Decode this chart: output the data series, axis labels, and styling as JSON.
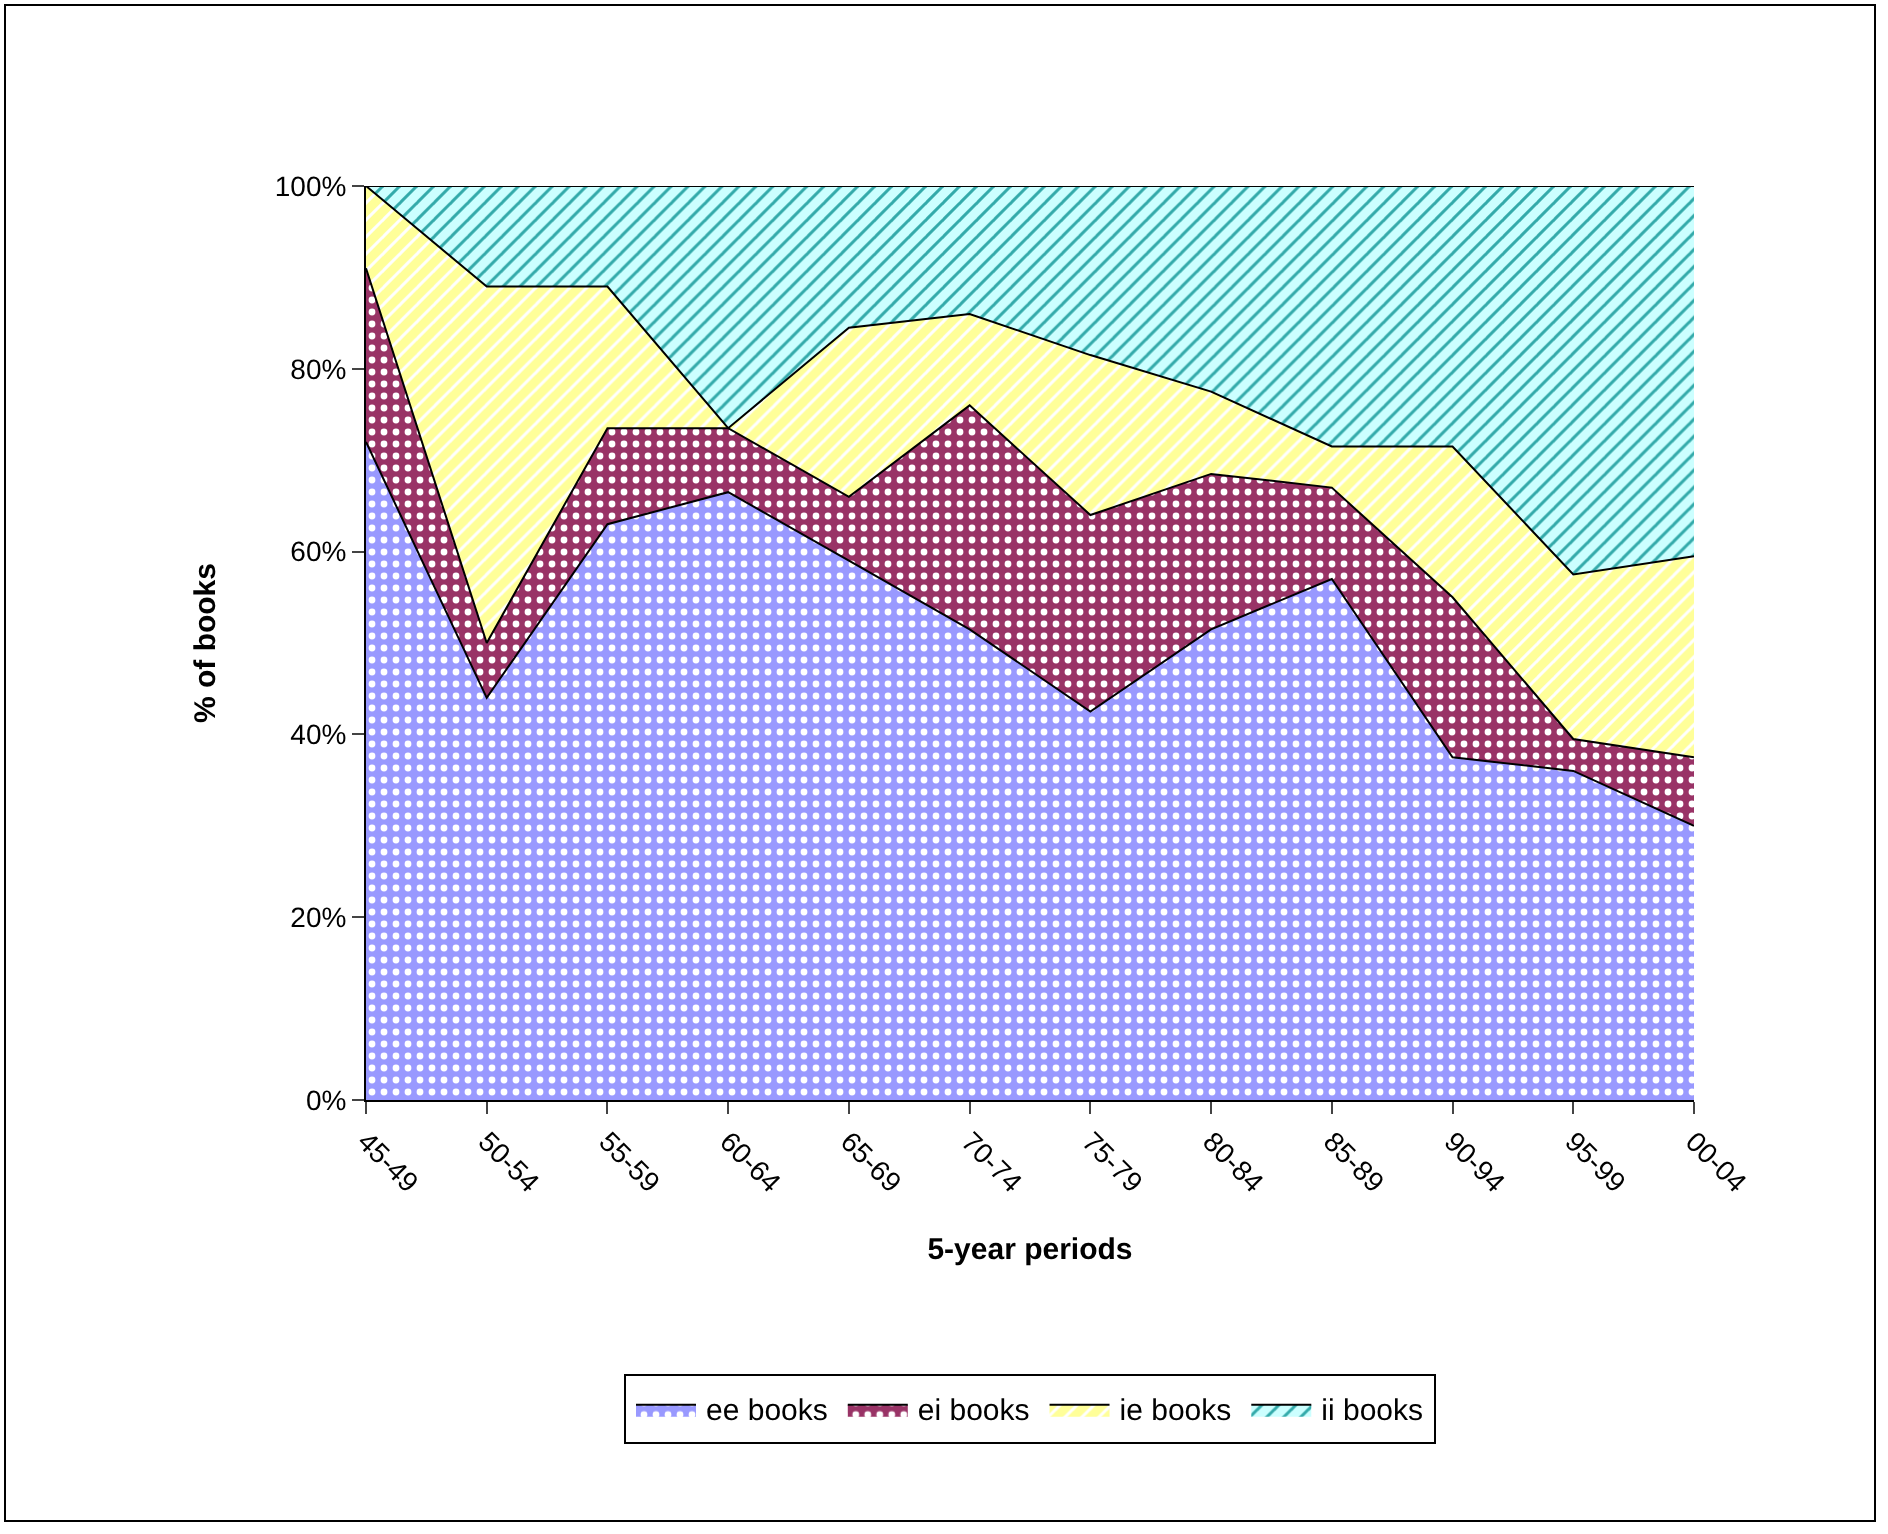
{
  "chart_data": {
    "type": "area",
    "stacked": true,
    "xlabel": "5-year periods",
    "ylabel": "% of books",
    "categories": [
      "45-49",
      "50-54",
      "55-59",
      "60-64",
      "65-69",
      "70-74",
      "75-79",
      "80-84",
      "85-89",
      "90-94",
      "95-99",
      "00-04"
    ],
    "series": [
      {
        "name": "ee books",
        "color": "#9999ff",
        "values": [
          72,
          44,
          63,
          66.5,
          59,
          51.5,
          42.5,
          51.5,
          57,
          37.5,
          36,
          30
        ]
      },
      {
        "name": "ei books",
        "color": "#993366",
        "values": [
          19,
          6,
          10.5,
          7,
          7,
          24.5,
          21.5,
          17,
          10,
          17.5,
          3.5,
          7.5
        ]
      },
      {
        "name": "ie books",
        "color": "#ffff99",
        "values": [
          9,
          39,
          15.5,
          0,
          18.5,
          10,
          17.5,
          9,
          4.5,
          16.5,
          18,
          22
        ]
      },
      {
        "name": "ii books",
        "color": "#ccffff",
        "values": [
          0,
          11,
          11,
          26.5,
          15.5,
          14,
          18.5,
          22.5,
          28.5,
          28.5,
          42.5,
          40.5
        ]
      }
    ],
    "ylim": [
      0,
      100
    ],
    "yticks": [
      {
        "value": 0,
        "label": "0%"
      },
      {
        "value": 20,
        "label": "20%"
      },
      {
        "value": 40,
        "label": "40%"
      },
      {
        "value": 60,
        "label": "60%"
      },
      {
        "value": 80,
        "label": "80%"
      },
      {
        "value": 100,
        "label": "100%"
      }
    ],
    "legend": "bottom"
  }
}
